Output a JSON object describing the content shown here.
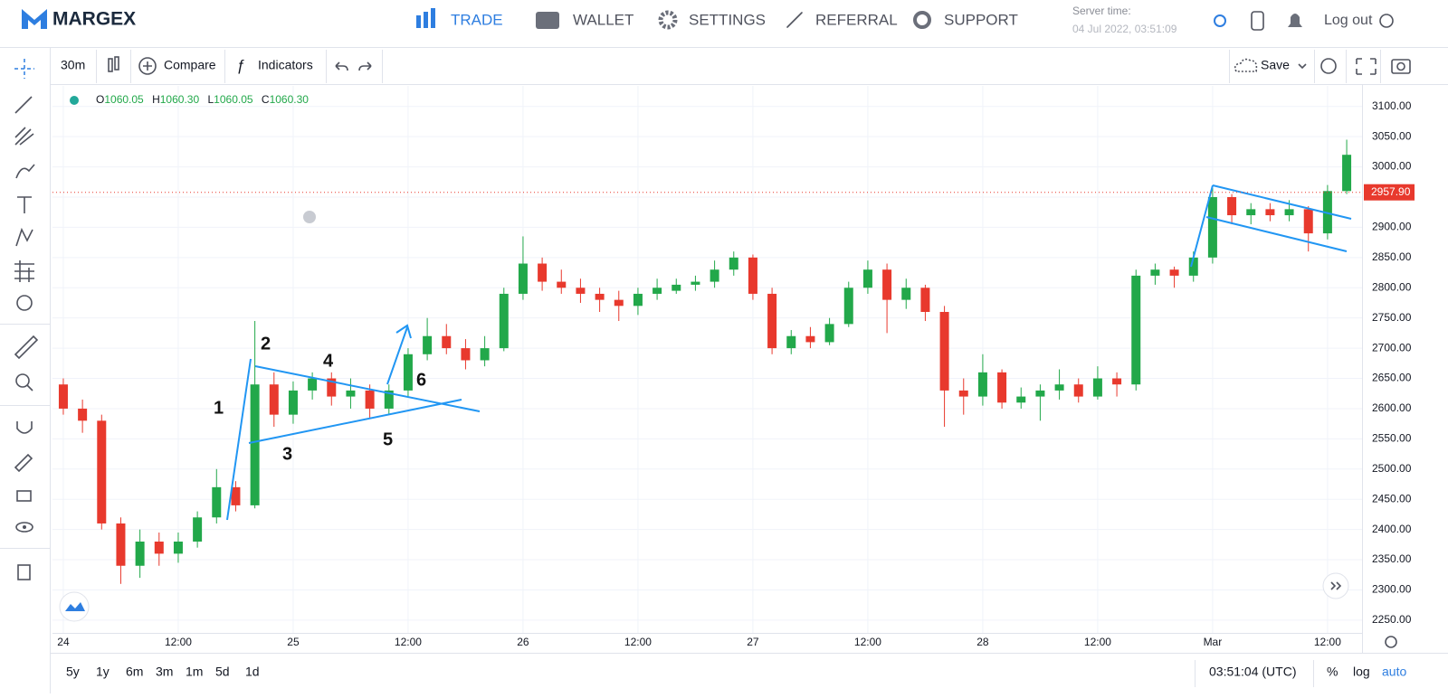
{
  "nav": {
    "logo": "MARGEX",
    "items": [
      "TRADE",
      "WALLET",
      "SETTINGS",
      "REFERRAL",
      "SUPPORT"
    ],
    "server_time_label": "Server time:",
    "server_time": "04 Jul 2022, 03:51:09",
    "logout": "Log out"
  },
  "toolbar": {
    "interval": "30m",
    "compare": "Compare",
    "indicators": "Indicators",
    "save": "Save"
  },
  "ohlc_legend": {
    "o_label": "O",
    "o": "1060.05",
    "h_label": "H",
    "h": "1060.30",
    "l_label": "L",
    "l": "1060.05",
    "c_label": "C",
    "c": "1060.30"
  },
  "chart_data": {
    "type": "candlestick",
    "up_color": "#22a84a",
    "down_color": "#e8392d",
    "grid": true,
    "x": [
      0,
      2,
      4,
      6,
      8,
      10,
      12,
      14,
      16,
      18,
      20,
      22,
      24,
      26,
      28,
      30,
      32,
      34,
      36,
      38,
      40,
      42,
      44,
      46,
      48,
      50,
      52,
      54,
      56,
      58,
      60,
      62,
      64,
      66,
      68,
      70,
      72,
      74,
      76,
      78,
      80,
      82,
      84,
      86,
      88,
      90,
      92,
      94,
      96,
      98,
      100,
      102,
      104,
      106,
      108,
      110,
      112,
      114,
      116,
      118,
      120,
      122,
      124,
      126,
      128,
      130,
      132,
      134
    ],
    "open": [
      2640,
      2600,
      2580,
      2410,
      2340,
      2380,
      2360,
      2380,
      2420,
      2470,
      2440,
      2640,
      2590,
      2630,
      2650,
      2620,
      2630,
      2600,
      2630,
      2690,
      2720,
      2700,
      2680,
      2700,
      2790,
      2840,
      2810,
      2800,
      2790,
      2780,
      2770,
      2790,
      2795,
      2805,
      2810,
      2830,
      2850,
      2790,
      2700,
      2720,
      2710,
      2740,
      2800,
      2830,
      2780,
      2800,
      2760,
      2630,
      2620,
      2660,
      2610,
      2620,
      2630,
      2640,
      2620,
      2650,
      2640,
      2820,
      2830,
      2820,
      2850,
      2950,
      2920,
      2930,
      2920,
      2930,
      2890,
      2960
    ],
    "high": [
      2650,
      2615,
      2590,
      2420,
      2400,
      2395,
      2395,
      2430,
      2500,
      2480,
      2745,
      2660,
      2645,
      2660,
      2660,
      2650,
      2640,
      2640,
      2700,
      2750,
      2740,
      2715,
      2720,
      2800,
      2885,
      2850,
      2830,
      2815,
      2800,
      2795,
      2800,
      2815,
      2815,
      2820,
      2845,
      2860,
      2855,
      2800,
      2730,
      2735,
      2750,
      2810,
      2845,
      2840,
      2815,
      2805,
      2770,
      2650,
      2690,
      2665,
      2635,
      2640,
      2665,
      2650,
      2670,
      2660,
      2830,
      2840,
      2835,
      2860,
      2965,
      2955,
      2940,
      2940,
      2945,
      2935,
      2970,
      3045
    ],
    "low": [
      2590,
      2560,
      2400,
      2310,
      2320,
      2340,
      2345,
      2370,
      2410,
      2430,
      2435,
      2570,
      2575,
      2615,
      2605,
      2600,
      2585,
      2590,
      2620,
      2680,
      2690,
      2665,
      2670,
      2695,
      2780,
      2795,
      2790,
      2775,
      2760,
      2745,
      2755,
      2780,
      2790,
      2795,
      2800,
      2820,
      2780,
      2690,
      2690,
      2700,
      2705,
      2735,
      2790,
      2725,
      2765,
      2745,
      2570,
      2590,
      2605,
      2600,
      2600,
      2580,
      2615,
      2610,
      2615,
      2620,
      2630,
      2805,
      2800,
      2810,
      2840,
      2905,
      2905,
      2910,
      2910,
      2860,
      2880,
      2955
    ],
    "close": [
      2600,
      2580,
      2410,
      2340,
      2380,
      2360,
      2380,
      2420,
      2470,
      2440,
      2640,
      2590,
      2630,
      2650,
      2620,
      2630,
      2600,
      2630,
      2690,
      2720,
      2700,
      2680,
      2700,
      2790,
      2840,
      2810,
      2800,
      2790,
      2780,
      2770,
      2790,
      2800,
      2805,
      2810,
      2830,
      2850,
      2790,
      2700,
      2720,
      2710,
      2740,
      2800,
      2830,
      2780,
      2800,
      2760,
      2630,
      2620,
      2660,
      2610,
      2620,
      2630,
      2640,
      2620,
      2650,
      2640,
      2820,
      2830,
      2820,
      2850,
      2950,
      2920,
      2930,
      2920,
      2930,
      2890,
      2960,
      3020
    ],
    "xlim": [
      -1.13,
      135.6
    ],
    "xticks": [
      {
        "value": 0,
        "label": "24"
      },
      {
        "value": 12,
        "label": "12:00"
      },
      {
        "value": 24,
        "label": "25"
      },
      {
        "value": 36,
        "label": "12:00"
      },
      {
        "value": 48,
        "label": "26"
      },
      {
        "value": 60,
        "label": "12:00"
      },
      {
        "value": 72,
        "label": "27"
      },
      {
        "value": 84,
        "label": "12:00"
      },
      {
        "value": 96,
        "label": "28"
      },
      {
        "value": 108,
        "label": "12:00"
      },
      {
        "value": 120,
        "label": "Mar"
      },
      {
        "value": 132,
        "label": "12:00"
      }
    ],
    "ylim": [
      2196,
      3134
    ],
    "yticks": [
      {
        "value": 2250,
        "label": "2250.00"
      },
      {
        "value": 2300,
        "label": "2300.00"
      },
      {
        "value": 2350,
        "label": "2350.00"
      },
      {
        "value": 2400,
        "label": "2400.00"
      },
      {
        "value": 2450,
        "label": "2450.00"
      },
      {
        "value": 2500,
        "label": "2500.00"
      },
      {
        "value": 2550,
        "label": "2550.00"
      },
      {
        "value": 2600,
        "label": "2600.00"
      },
      {
        "value": 2650,
        "label": "2650.00"
      },
      {
        "value": 2700,
        "label": "2700.00"
      },
      {
        "value": 2750,
        "label": "2750.00"
      },
      {
        "value": 2800,
        "label": "2800.00"
      },
      {
        "value": 2850,
        "label": "2850.00"
      },
      {
        "value": 2900,
        "label": "2900.00"
      },
      {
        "value": 2950,
        "label": "2950.00"
      },
      {
        "value": 3000,
        "label": "3000.00"
      },
      {
        "value": 3050,
        "label": "3050.00"
      },
      {
        "value": 3100,
        "label": "3100.00"
      }
    ],
    "last_price": {
      "value": 2957.9,
      "label": "2957.90"
    },
    "annotations": [
      "1",
      "2",
      "3",
      "4",
      "5",
      "6"
    ]
  },
  "bottom_bar": {
    "ranges": [
      "5y",
      "1y",
      "6m",
      "3m",
      "1m",
      "5d",
      "1d"
    ],
    "clock": "03:51:04 (UTC)",
    "percent": "%",
    "log": "log",
    "auto": "auto"
  }
}
